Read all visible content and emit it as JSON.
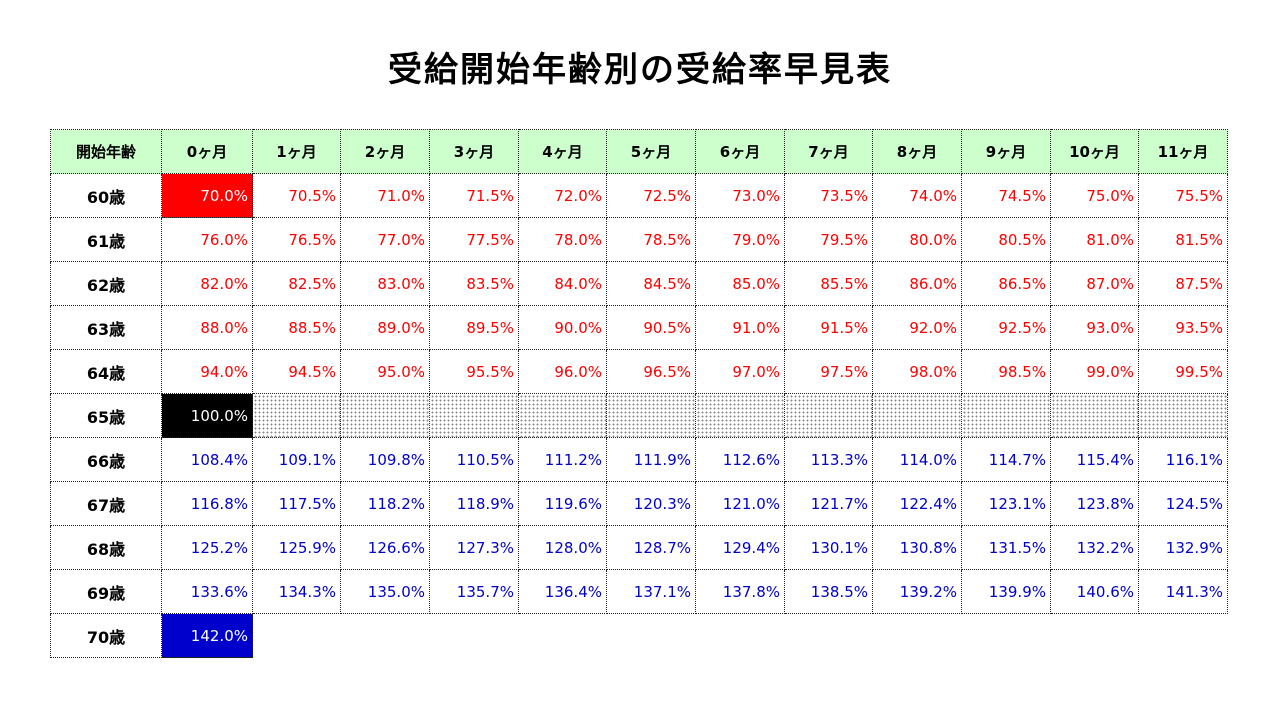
{
  "title": "受給開始年齢別の受給率早見表",
  "header": {
    "corner": "開始年齢",
    "months": [
      "0ヶ月",
      "1ヶ月",
      "2ヶ月",
      "3ヶ月",
      "4ヶ月",
      "5ヶ月",
      "6ヶ月",
      "7ヶ月",
      "8ヶ月",
      "9ヶ月",
      "10ヶ月",
      "11ヶ月"
    ]
  },
  "rows": [
    {
      "age": "60歳",
      "values": [
        "70.0%",
        "70.5%",
        "71.0%",
        "71.5%",
        "72.0%",
        "72.5%",
        "73.0%",
        "73.5%",
        "74.0%",
        "74.5%",
        "75.0%",
        "75.5%"
      ]
    },
    {
      "age": "61歳",
      "values": [
        "76.0%",
        "76.5%",
        "77.0%",
        "77.5%",
        "78.0%",
        "78.5%",
        "79.0%",
        "79.5%",
        "80.0%",
        "80.5%",
        "81.0%",
        "81.5%"
      ]
    },
    {
      "age": "62歳",
      "values": [
        "82.0%",
        "82.5%",
        "83.0%",
        "83.5%",
        "84.0%",
        "84.5%",
        "85.0%",
        "85.5%",
        "86.0%",
        "86.5%",
        "87.0%",
        "87.5%"
      ]
    },
    {
      "age": "63歳",
      "values": [
        "88.0%",
        "88.5%",
        "89.0%",
        "89.5%",
        "90.0%",
        "90.5%",
        "91.0%",
        "91.5%",
        "92.0%",
        "92.5%",
        "93.0%",
        "93.5%"
      ]
    },
    {
      "age": "64歳",
      "values": [
        "94.0%",
        "94.5%",
        "95.0%",
        "95.5%",
        "96.0%",
        "96.5%",
        "97.0%",
        "97.5%",
        "98.0%",
        "98.5%",
        "99.0%",
        "99.5%"
      ]
    },
    {
      "age": "65歳",
      "values": [
        "100.0%"
      ]
    },
    {
      "age": "66歳",
      "values": [
        "108.4%",
        "109.1%",
        "109.8%",
        "110.5%",
        "111.2%",
        "111.9%",
        "112.6%",
        "113.3%",
        "114.0%",
        "114.7%",
        "115.4%",
        "116.1%"
      ]
    },
    {
      "age": "67歳",
      "values": [
        "116.8%",
        "117.5%",
        "118.2%",
        "118.9%",
        "119.6%",
        "120.3%",
        "121.0%",
        "121.7%",
        "122.4%",
        "123.1%",
        "123.8%",
        "124.5%"
      ]
    },
    {
      "age": "68歳",
      "values": [
        "125.2%",
        "125.9%",
        "126.6%",
        "127.3%",
        "128.0%",
        "128.7%",
        "129.4%",
        "130.1%",
        "130.8%",
        "131.5%",
        "132.2%",
        "132.9%"
      ]
    },
    {
      "age": "69歳",
      "values": [
        "133.6%",
        "134.3%",
        "135.0%",
        "135.7%",
        "136.4%",
        "137.1%",
        "137.8%",
        "138.5%",
        "139.2%",
        "139.9%",
        "140.6%",
        "141.3%"
      ]
    },
    {
      "age": "70歳",
      "values": [
        "142.0%"
      ]
    }
  ],
  "colors": {
    "header_bg": "#ccffcc",
    "reduced_text": "#ff0000",
    "increased_text": "#0000cc",
    "min_cell_bg": "#ff0000",
    "base_cell_bg": "#000000",
    "max_cell_bg": "#0000cc"
  }
}
